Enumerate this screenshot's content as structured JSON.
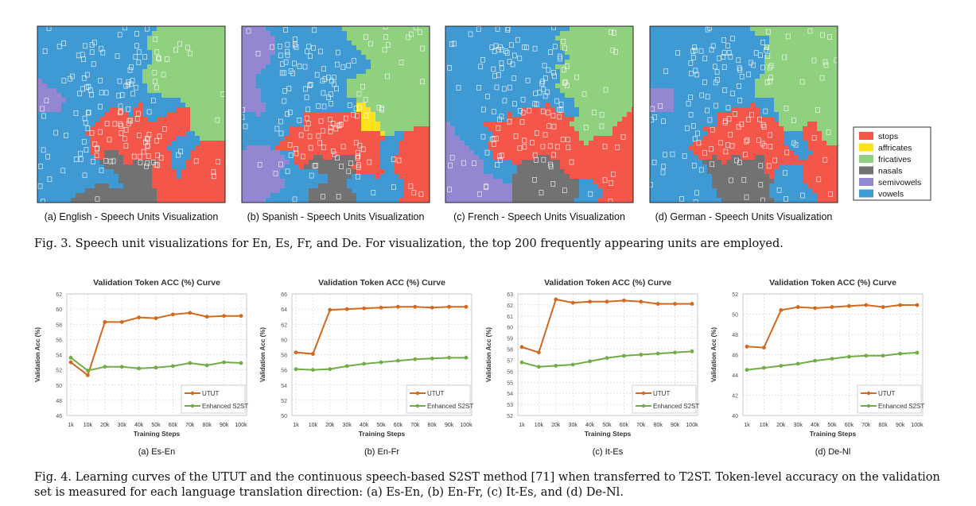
{
  "figure3": {
    "panels": [
      {
        "id": "a",
        "caption": "(a) English - Speech Units Visualization"
      },
      {
        "id": "b",
        "caption": "(b) Spanish - Speech Units Visualization"
      },
      {
        "id": "c",
        "caption": "(c) French - Speech Units Visualization"
      },
      {
        "id": "d",
        "caption": "(d) German - Speech Units Visualization"
      }
    ],
    "legend": [
      {
        "label": "stops",
        "color": "#f4574a"
      },
      {
        "label": "affricates",
        "color": "#ffe11c"
      },
      {
        "label": "fricatives",
        "color": "#8fd17f"
      },
      {
        "label": "nasals",
        "color": "#727272"
      },
      {
        "label": "semivowels",
        "color": "#9586d1"
      },
      {
        "label": "vowels",
        "color": "#3f9ad3"
      }
    ],
    "caption": "Fig. 3.  Speech unit visualizations for En, Es, Fr, and De. For visualization, the top 200 frequently appearing units are employed."
  },
  "figure4": {
    "caption": "Fig. 4.  Learning curves of the UTUT and the continuous speech-based S2ST method [71] when transferred to T2ST. Token-level accuracy on the validation set is measured for each language translation direction: (a) Es-En, (b) En-Fr, (c) It-Es, and (d) De-Nl.",
    "colors": {
      "utut": "#d2691e",
      "s2st": "#70ad47"
    },
    "chart_data": [
      {
        "type": "line",
        "title": "Validation Token ACC (%) Curve",
        "subcaption": "(a) Es-En",
        "xlabel": "Training Steps",
        "ylabel": "Validation Acc (%)",
        "categories": [
          "1k",
          "10k",
          "20k",
          "30k",
          "40k",
          "50k",
          "60k",
          "70k",
          "80k",
          "90k",
          "100k"
        ],
        "ylim": [
          46,
          62
        ],
        "yticks": [
          "46",
          "48",
          "50",
          "52",
          "54",
          "56",
          "58",
          "60",
          "62"
        ],
        "series": [
          {
            "name": "UTUT",
            "values": [
              53.0,
              51.3,
              58.3,
              58.3,
              58.9,
              58.8,
              59.3,
              59.5,
              59.0,
              59.1,
              59.1
            ]
          },
          {
            "name": "Enhanced S2ST",
            "values": [
              53.6,
              51.9,
              52.4,
              52.4,
              52.2,
              52.3,
              52.5,
              52.9,
              52.6,
              53.0,
              52.9
            ]
          }
        ]
      },
      {
        "type": "line",
        "title": "Validation Token ACC (%) Curve",
        "subcaption": "(b) En-Fr",
        "xlabel": "Training Steps",
        "ylabel": "Validation Acc (%)",
        "categories": [
          "1k",
          "10k",
          "20k",
          "30k",
          "40k",
          "50k",
          "60k",
          "70k",
          "80k",
          "90k",
          "100k"
        ],
        "ylim": [
          50,
          66
        ],
        "yticks": [
          "50",
          "52",
          "54",
          "56",
          "58",
          "60",
          "62",
          "64",
          "66"
        ],
        "series": [
          {
            "name": "UTUT",
            "values": [
              58.3,
              58.1,
              63.9,
              64.0,
              64.1,
              64.2,
              64.3,
              64.3,
              64.2,
              64.3,
              64.3
            ]
          },
          {
            "name": "Enhanced S2ST",
            "values": [
              56.1,
              56.0,
              56.1,
              56.5,
              56.8,
              57.0,
              57.2,
              57.4,
              57.5,
              57.6,
              57.6
            ]
          }
        ]
      },
      {
        "type": "line",
        "title": "Validation Token ACC (%) Curve",
        "subcaption": "(c) It-Es",
        "xlabel": "Training Steps",
        "ylabel": "Validation Acc (%)",
        "categories": [
          "1k",
          "10k",
          "20k",
          "30k",
          "40k",
          "50k",
          "60k",
          "70k",
          "80k",
          "90k",
          "100k"
        ],
        "ylim": [
          52,
          63
        ],
        "yticks": [
          "52",
          "53",
          "54",
          "55",
          "56",
          "57",
          "58",
          "59",
          "60",
          "61",
          "62",
          "63"
        ],
        "series": [
          {
            "name": "UTUT",
            "values": [
              58.2,
              57.7,
              62.5,
              62.2,
              62.3,
              62.3,
              62.4,
              62.3,
              62.1,
              62.1,
              62.1
            ]
          },
          {
            "name": "Enhanced S2ST",
            "values": [
              56.8,
              56.4,
              56.5,
              56.6,
              56.9,
              57.2,
              57.4,
              57.5,
              57.6,
              57.7,
              57.8
            ]
          }
        ]
      },
      {
        "type": "line",
        "title": "Validation Token ACC (%) Curve",
        "subcaption": "(d) De-Nl",
        "xlabel": "Training Steps",
        "ylabel": "Validation Acc (%)",
        "categories": [
          "1k",
          "10k",
          "20k",
          "30k",
          "40k",
          "50k",
          "60k",
          "70k",
          "80k",
          "90k",
          "100k"
        ],
        "ylim": [
          40,
          52
        ],
        "yticks": [
          "40",
          "42",
          "44",
          "46",
          "48",
          "50",
          "52"
        ],
        "series": [
          {
            "name": "UTUT",
            "values": [
              46.8,
              46.7,
              50.4,
              50.7,
              50.6,
              50.7,
              50.8,
              50.9,
              50.7,
              50.9,
              50.9
            ]
          },
          {
            "name": "Enhanced S2ST",
            "values": [
              44.5,
              44.7,
              44.9,
              45.1,
              45.4,
              45.6,
              45.8,
              45.9,
              45.9,
              46.1,
              46.2
            ]
          }
        ]
      }
    ]
  }
}
